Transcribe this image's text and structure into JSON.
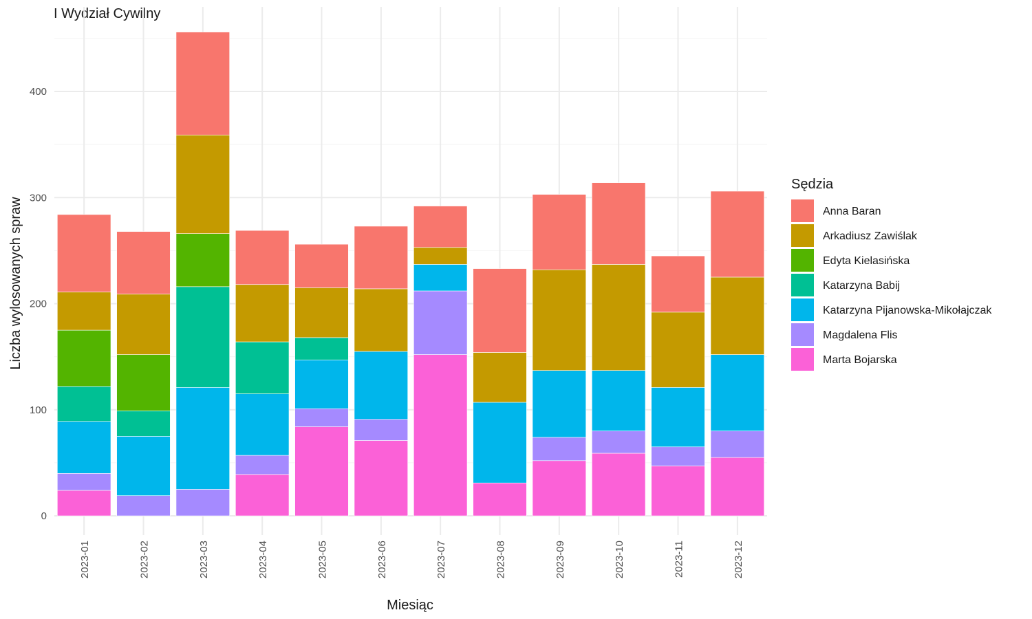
{
  "chart_data": {
    "type": "bar",
    "stacked": true,
    "title": "I Wydział Cywilny",
    "xlabel": "Miesiąc",
    "ylabel": "Liczba wylosowanych spraw",
    "categories": [
      "2023-01",
      "2023-02",
      "2023-03",
      "2023-04",
      "2023-05",
      "2023-06",
      "2023-07",
      "2023-08",
      "2023-09",
      "2023-10",
      "2023-11",
      "2023-12"
    ],
    "ylim": [
      0,
      470
    ],
    "yticks": [
      0,
      100,
      200,
      300,
      400
    ],
    "grid": true,
    "legend": {
      "title": "Sędzia",
      "position": "right"
    },
    "series": [
      {
        "name": "Marta Bojarska",
        "color": "#FB61D7",
        "values": [
          24,
          0,
          0,
          39,
          84,
          71,
          152,
          31,
          52,
          59,
          47,
          55
        ]
      },
      {
        "name": "Magdalena Flis",
        "color": "#A58AFF",
        "values": [
          16,
          19,
          25,
          18,
          17,
          20,
          60,
          0,
          22,
          21,
          18,
          25
        ]
      },
      {
        "name": "Katarzyna Pijanowska-Mikołajczak",
        "color": "#00B6EB",
        "values": [
          49,
          56,
          96,
          58,
          46,
          64,
          25,
          76,
          63,
          57,
          56,
          72
        ]
      },
      {
        "name": "Katarzyna Babij",
        "color": "#00C094",
        "values": [
          33,
          24,
          95,
          49,
          21,
          0,
          0,
          0,
          0,
          0,
          0,
          0
        ]
      },
      {
        "name": "Edyta Kielasińska",
        "color": "#53B400",
        "values": [
          53,
          53,
          50,
          0,
          0,
          0,
          0,
          0,
          0,
          0,
          0,
          0
        ]
      },
      {
        "name": "Arkadiusz Zawiślak",
        "color": "#C49A00",
        "values": [
          36,
          57,
          93,
          54,
          47,
          59,
          16,
          47,
          95,
          100,
          71,
          73
        ]
      },
      {
        "name": "Anna Baran",
        "color": "#F8766D",
        "values": [
          73,
          59,
          97,
          51,
          41,
          59,
          39,
          79,
          71,
          77,
          53,
          81
        ]
      }
    ],
    "legend_order": [
      "Anna Baran",
      "Arkadiusz Zawiślak",
      "Edyta Kielasińska",
      "Katarzyna Babij",
      "Katarzyna Pijanowska-Mikołajczak",
      "Magdalena Flis",
      "Marta Bojarska"
    ]
  }
}
